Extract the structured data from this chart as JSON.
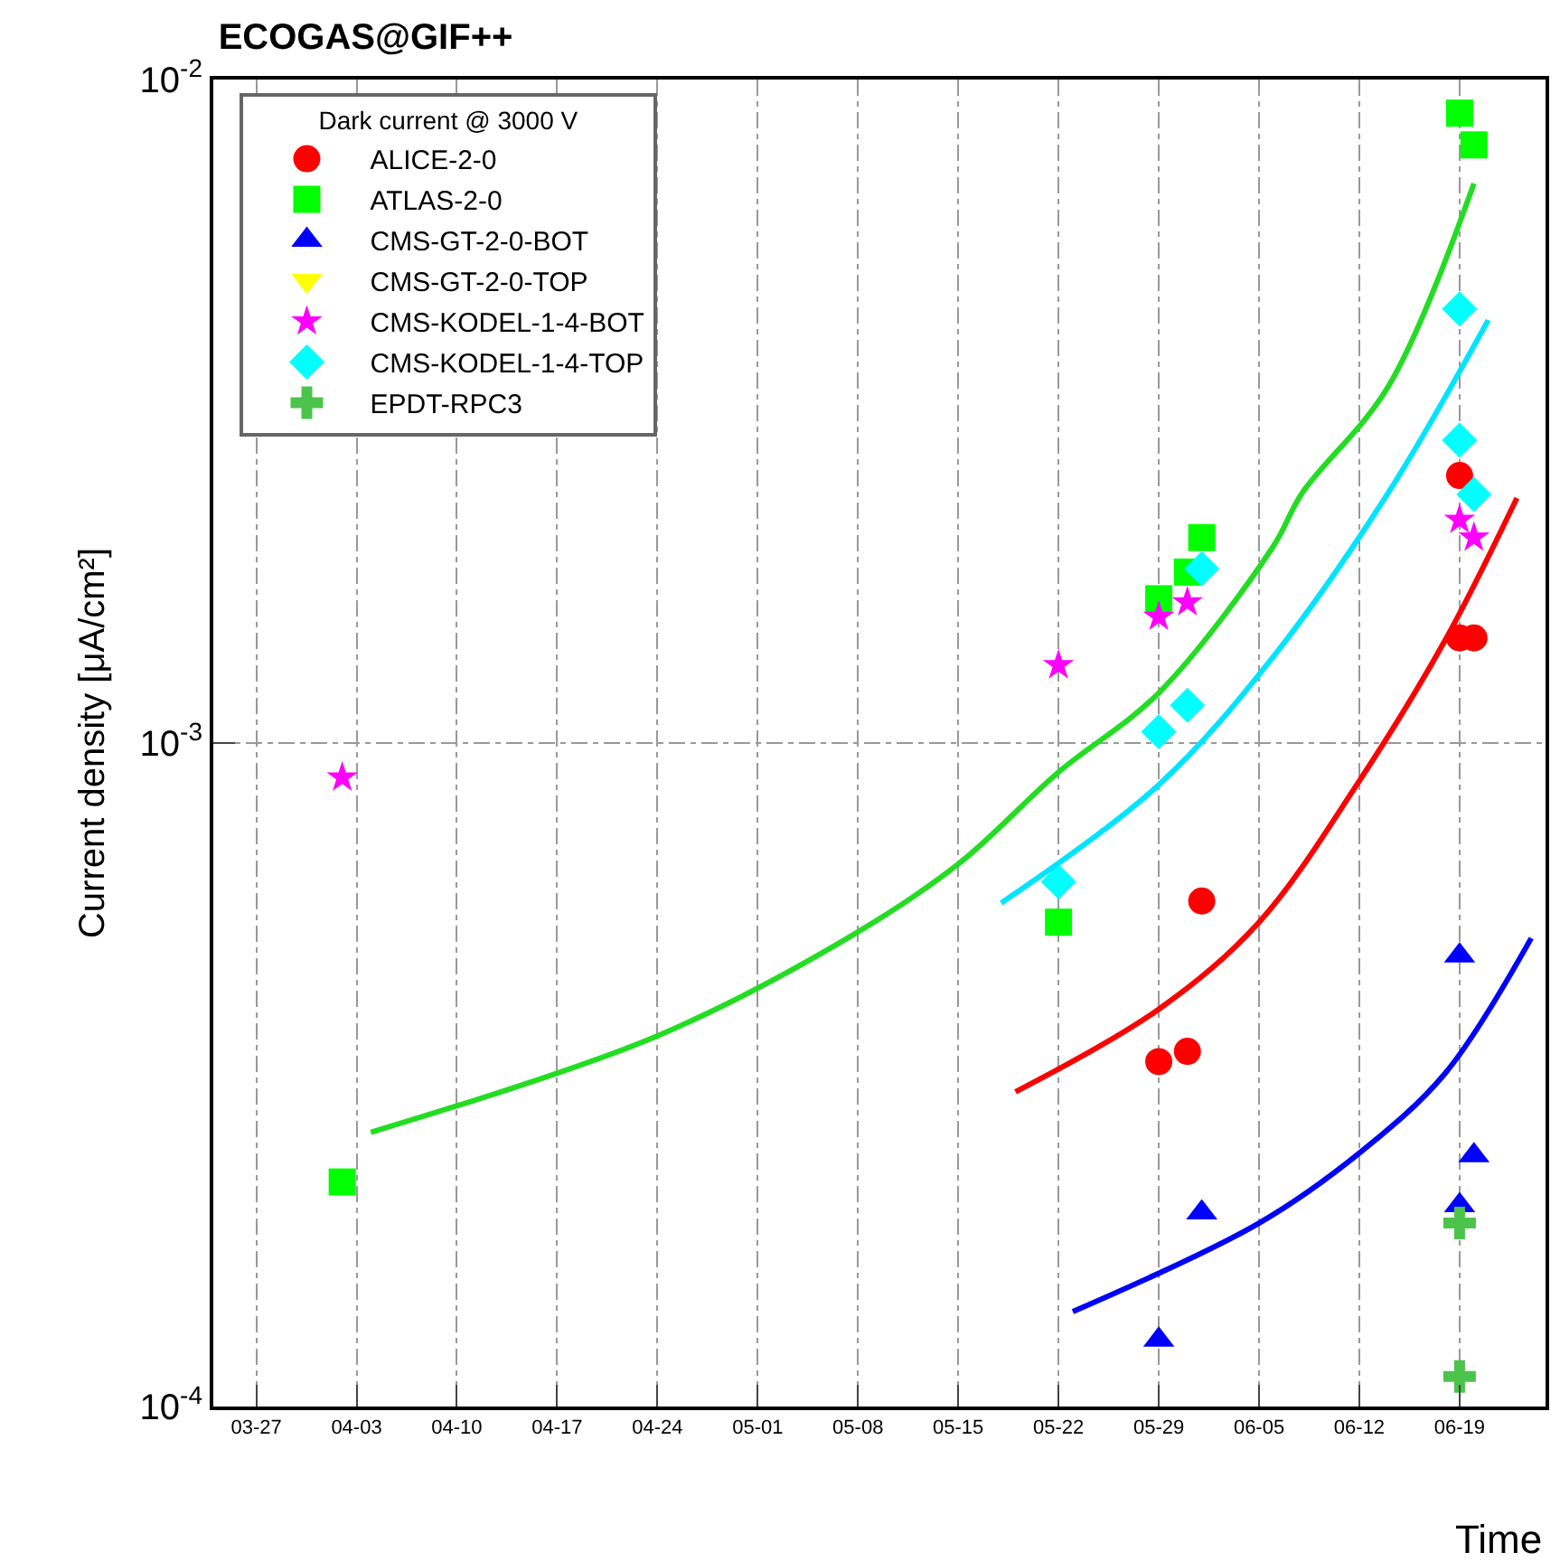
{
  "chart_data": {
    "type": "scatter",
    "title": "ECOGAS@GIF++",
    "xlabel": "Time",
    "ylabel": "Current density [μA/cm²]",
    "legend_title": "Dark current @ 3000 V",
    "log": "y",
    "grid": true,
    "legend": "top left",
    "xlim": [
      "--03-24",
      "--06-25"
    ],
    "xticks": [
      {
        "value": "--03-27",
        "label": "03-27"
      },
      {
        "value": "--04-03",
        "label": "04-03"
      },
      {
        "value": "--04-10",
        "label": "04-10"
      },
      {
        "value": "--04-17",
        "label": "04-17"
      },
      {
        "value": "--04-24",
        "label": "04-24"
      },
      {
        "value": "--05-01",
        "label": "05-01"
      },
      {
        "value": "--05-08",
        "label": "05-08"
      },
      {
        "value": "--05-15",
        "label": "05-15"
      },
      {
        "value": "--05-22",
        "label": "05-22"
      },
      {
        "value": "--05-29",
        "label": "05-29"
      },
      {
        "value": "--06-05",
        "label": "06-05"
      },
      {
        "value": "--06-12",
        "label": "06-12"
      },
      {
        "value": "--06-19",
        "label": "06-19"
      }
    ],
    "ylim": [
      0.0001,
      0.01
    ],
    "yticks": [
      {
        "value": 0.0001,
        "label": "10$^{-4}$"
      },
      {
        "value": 0.001,
        "label": "10$^{-3}$"
      },
      {
        "value": 0.01,
        "label": "10$^{-2}$"
      }
    ],
    "series": [
      {
        "name": "ALICE-2-0",
        "color": "#ff0000",
        "marker": "circle",
        "x": [
          "--05-29",
          "--05-31",
          "--06-01",
          "--06-19",
          "--06-20",
          "--06-19"
        ],
        "values": [
          0.000331,
          0.000343,
          0.000578,
          0.00144,
          0.00144,
          0.00253
        ]
      },
      {
        "name": "ATLAS-2-0",
        "color": "#00ff00",
        "marker": "square",
        "x": [
          "--04-02",
          "--05-22",
          "--05-29",
          "--05-31",
          "--06-01",
          "--06-19",
          "--06-20"
        ],
        "values": [
          0.000218,
          0.000537,
          0.00165,
          0.00181,
          0.00204,
          0.0089,
          0.00797
        ]
      },
      {
        "name": "CMS-GT-2-0-BOT",
        "color": "#0000ff",
        "marker": "triangle",
        "x": [
          "--05-29",
          "--06-01",
          "--06-19",
          "--06-20",
          "--06-19"
        ],
        "values": [
          0.000126,
          0.000196,
          0.000478,
          0.000239,
          0.000201
        ]
      },
      {
        "name": "CMS-GT-2-0-TOP",
        "color": "#ffff00",
        "marker": "triangle-down"
      },
      {
        "name": "CMS-KODEL-1-4-BOT",
        "color": "#ff00ff",
        "marker": "star",
        "x": [
          "--04-02",
          "--05-22",
          "--05-29",
          "--05-31",
          "--06-19",
          "--06-20"
        ],
        "values": [
          0.000887,
          0.00131,
          0.00155,
          0.00163,
          0.00217,
          0.00204
        ]
      },
      {
        "name": "CMS-KODEL-1-4-TOP",
        "color": "#00ffff",
        "marker": "diamond",
        "x": [
          "--05-22",
          "--05-29",
          "--05-31",
          "--06-01",
          "--06-19",
          "--06-19",
          "--06-20"
        ],
        "values": [
          0.000618,
          0.00104,
          0.00114,
          0.00183,
          0.00451,
          0.00286,
          0.00237
        ]
      },
      {
        "name": "EPDT-RPC3",
        "color": "#4cc44c",
        "marker": "cross",
        "x": [
          "--06-19",
          "--06-19"
        ],
        "values": [
          0.000189,
          0.000111
        ]
      },
      {
        "type": "line",
        "color": "#22dd22",
        "x": [
          "--04-04",
          "--04-24",
          "--05-07",
          "--05-15",
          "--05-22",
          "--05-29",
          "--06-06",
          "--06-08",
          "--06-14",
          "--06-20"
        ],
        "values": [
          0.000259,
          0.000362,
          0.000504,
          0.000657,
          0.000904,
          0.00119,
          0.00198,
          0.00238,
          0.00344,
          0.00697
        ]
      },
      {
        "type": "line",
        "color": "#00e5ff",
        "x": [
          "--05-18",
          "--05-29",
          "--06-06",
          "--06-14",
          "--06-21"
        ],
        "values": [
          0.000574,
          0.000865,
          0.00135,
          0.00238,
          0.00434
        ]
      },
      {
        "type": "line",
        "color": "#ff0000",
        "x": [
          "--05-19",
          "--05-29",
          "--06-05",
          "--06-12",
          "--06-18",
          "--06-23"
        ],
        "values": [
          0.000298,
          0.000397,
          0.000537,
          0.000877,
          0.00143,
          0.00234
        ]
      },
      {
        "type": "line",
        "color": "#0000ff",
        "x": [
          "--05-23",
          "--06-05",
          "--06-12",
          "--06-18",
          "--06-24"
        ],
        "values": [
          0.000139,
          0.000189,
          0.000241,
          0.000318,
          0.000508
        ]
      }
    ]
  }
}
